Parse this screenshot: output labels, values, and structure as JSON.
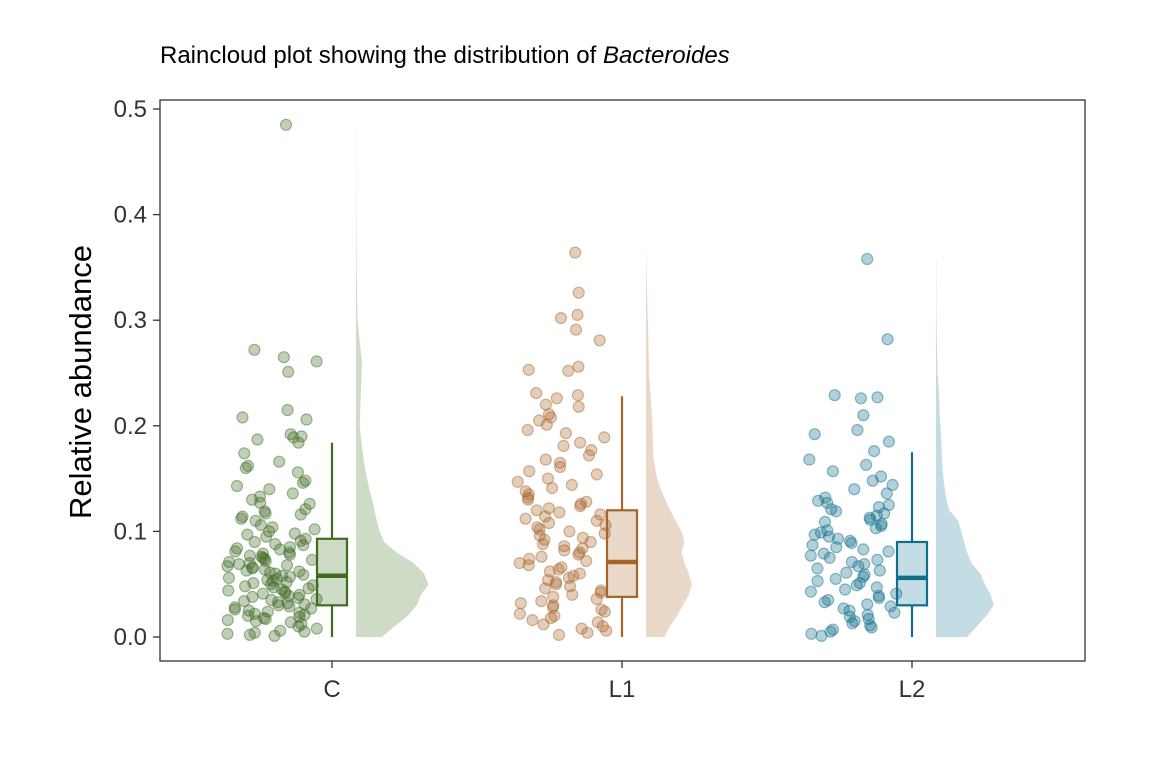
{
  "chart_data": {
    "type": "raincloud",
    "title_prefix": "Raincloud plot showing the distribution of ",
    "title_italic": "Bacteroides",
    "xlabel": "",
    "ylabel": "Relative abundance",
    "ylim": [
      -0.023,
      0.508
    ],
    "yticks": [
      0.0,
      0.1,
      0.2,
      0.3,
      0.4,
      0.5
    ],
    "ytick_labels": [
      "0.0",
      "0.1",
      "0.2",
      "0.3",
      "0.4",
      "0.5"
    ],
    "categories": [
      "C",
      "L1",
      "L2"
    ],
    "grid": false,
    "legend": "none",
    "series": [
      {
        "group": "C",
        "color": "#3F6B23",
        "fill": "#CEDBC7",
        "box": {
          "min": 0.0,
          "q1": 0.03,
          "median": 0.058,
          "q3": 0.093,
          "max": 0.184
        },
        "points": [
          0.485,
          0.272,
          0.265,
          0.261,
          0.251,
          0.215,
          0.208,
          0.206,
          0.192,
          0.19,
          0.189,
          0.187,
          0.184,
          0.174,
          0.166,
          0.162,
          0.16,
          0.156,
          0.148,
          0.146,
          0.143,
          0.14,
          0.136,
          0.133,
          0.13,
          0.127,
          0.126,
          0.121,
          0.119,
          0.117,
          0.116,
          0.114,
          0.112,
          0.11,
          0.106,
          0.104,
          0.102,
          0.1,
          0.098,
          0.097,
          0.095,
          0.093,
          0.091,
          0.09,
          0.088,
          0.087,
          0.085,
          0.084,
          0.083,
          0.081,
          0.08,
          0.079,
          0.078,
          0.077,
          0.076,
          0.075,
          0.074,
          0.073,
          0.072,
          0.071,
          0.07,
          0.069,
          0.068,
          0.067,
          0.066,
          0.065,
          0.064,
          0.063,
          0.062,
          0.061,
          0.06,
          0.059,
          0.058,
          0.057,
          0.056,
          0.055,
          0.054,
          0.053,
          0.052,
          0.051,
          0.05,
          0.049,
          0.048,
          0.047,
          0.046,
          0.045,
          0.044,
          0.043,
          0.042,
          0.041,
          0.04,
          0.039,
          0.038,
          0.037,
          0.036,
          0.035,
          0.034,
          0.033,
          0.032,
          0.031,
          0.03,
          0.029,
          0.028,
          0.027,
          0.026,
          0.025,
          0.024,
          0.023,
          0.022,
          0.021,
          0.02,
          0.019,
          0.018,
          0.017,
          0.016,
          0.015,
          0.014,
          0.012,
          0.01,
          0.008,
          0.006,
          0.005,
          0.004,
          0.003,
          0.002,
          0.001
        ],
        "density": [
          [
            0.0,
            0.35
          ],
          [
            0.01,
            0.52
          ],
          [
            0.02,
            0.7
          ],
          [
            0.03,
            0.82
          ],
          [
            0.04,
            0.88
          ],
          [
            0.05,
            0.98
          ],
          [
            0.06,
            0.92
          ],
          [
            0.07,
            0.78
          ],
          [
            0.08,
            0.55
          ],
          [
            0.09,
            0.38
          ],
          [
            0.1,
            0.32
          ],
          [
            0.11,
            0.28
          ],
          [
            0.12,
            0.25
          ],
          [
            0.13,
            0.22
          ],
          [
            0.14,
            0.18
          ],
          [
            0.16,
            0.12
          ],
          [
            0.18,
            0.08
          ],
          [
            0.2,
            0.05
          ],
          [
            0.22,
            0.06
          ],
          [
            0.24,
            0.07
          ],
          [
            0.26,
            0.08
          ],
          [
            0.28,
            0.05
          ],
          [
            0.3,
            0.02
          ],
          [
            0.34,
            0.01
          ],
          [
            0.4,
            0.004
          ],
          [
            0.45,
            0.003
          ],
          [
            0.485,
            0.003
          ]
        ]
      },
      {
        "group": "L1",
        "color": "#A8652A",
        "fill": "#EAD9C8",
        "box": {
          "min": 0.0,
          "q1": 0.038,
          "median": 0.071,
          "q3": 0.12,
          "max": 0.228
        },
        "points": [
          0.364,
          0.326,
          0.305,
          0.302,
          0.291,
          0.281,
          0.256,
          0.253,
          0.252,
          0.231,
          0.229,
          0.226,
          0.22,
          0.218,
          0.211,
          0.208,
          0.205,
          0.201,
          0.196,
          0.193,
          0.189,
          0.184,
          0.181,
          0.177,
          0.172,
          0.168,
          0.165,
          0.161,
          0.157,
          0.154,
          0.15,
          0.147,
          0.144,
          0.141,
          0.138,
          0.135,
          0.132,
          0.13,
          0.128,
          0.126,
          0.124,
          0.122,
          0.12,
          0.118,
          0.116,
          0.114,
          0.112,
          0.11,
          0.108,
          0.106,
          0.104,
          0.102,
          0.1,
          0.098,
          0.096,
          0.094,
          0.092,
          0.09,
          0.088,
          0.086,
          0.084,
          0.082,
          0.08,
          0.078,
          0.076,
          0.074,
          0.072,
          0.07,
          0.068,
          0.066,
          0.064,
          0.062,
          0.06,
          0.058,
          0.056,
          0.054,
          0.052,
          0.05,
          0.048,
          0.046,
          0.044,
          0.042,
          0.04,
          0.038,
          0.036,
          0.034,
          0.032,
          0.03,
          0.028,
          0.026,
          0.024,
          0.022,
          0.02,
          0.018,
          0.016,
          0.014,
          0.012,
          0.01,
          0.008,
          0.006,
          0.004,
          0.002
        ],
        "density": [
          [
            0.0,
            0.25
          ],
          [
            0.01,
            0.32
          ],
          [
            0.02,
            0.42
          ],
          [
            0.03,
            0.5
          ],
          [
            0.04,
            0.58
          ],
          [
            0.05,
            0.62
          ],
          [
            0.06,
            0.58
          ],
          [
            0.07,
            0.52
          ],
          [
            0.08,
            0.48
          ],
          [
            0.09,
            0.52
          ],
          [
            0.1,
            0.48
          ],
          [
            0.11,
            0.4
          ],
          [
            0.12,
            0.33
          ],
          [
            0.13,
            0.26
          ],
          [
            0.14,
            0.2
          ],
          [
            0.15,
            0.15
          ],
          [
            0.17,
            0.1
          ],
          [
            0.19,
            0.09
          ],
          [
            0.21,
            0.08
          ],
          [
            0.23,
            0.06
          ],
          [
            0.25,
            0.04
          ],
          [
            0.27,
            0.035
          ],
          [
            0.29,
            0.03
          ],
          [
            0.31,
            0.02
          ],
          [
            0.33,
            0.012
          ],
          [
            0.35,
            0.006
          ],
          [
            0.364,
            0.004
          ]
        ]
      },
      {
        "group": "L2",
        "color": "#0F6E8A",
        "fill": "#C4DDE5",
        "box": {
          "min": 0.0,
          "q1": 0.03,
          "median": 0.056,
          "q3": 0.09,
          "max": 0.175
        },
        "points": [
          0.358,
          0.282,
          0.229,
          0.227,
          0.226,
          0.21,
          0.196,
          0.192,
          0.185,
          0.176,
          0.168,
          0.163,
          0.157,
          0.152,
          0.148,
          0.144,
          0.14,
          0.136,
          0.132,
          0.129,
          0.127,
          0.125,
          0.123,
          0.121,
          0.119,
          0.117,
          0.115,
          0.113,
          0.111,
          0.109,
          0.107,
          0.105,
          0.103,
          0.101,
          0.099,
          0.097,
          0.095,
          0.093,
          0.091,
          0.089,
          0.087,
          0.085,
          0.083,
          0.081,
          0.079,
          0.077,
          0.075,
          0.073,
          0.071,
          0.069,
          0.067,
          0.065,
          0.063,
          0.061,
          0.059,
          0.057,
          0.055,
          0.053,
          0.051,
          0.049,
          0.047,
          0.045,
          0.043,
          0.041,
          0.039,
          0.037,
          0.035,
          0.033,
          0.031,
          0.029,
          0.027,
          0.025,
          0.023,
          0.021,
          0.019,
          0.017,
          0.015,
          0.013,
          0.011,
          0.009,
          0.007,
          0.005,
          0.003,
          0.001
        ],
        "density": [
          [
            0.0,
            0.42
          ],
          [
            0.01,
            0.55
          ],
          [
            0.02,
            0.68
          ],
          [
            0.03,
            0.78
          ],
          [
            0.04,
            0.74
          ],
          [
            0.05,
            0.66
          ],
          [
            0.06,
            0.6
          ],
          [
            0.07,
            0.48
          ],
          [
            0.08,
            0.42
          ],
          [
            0.09,
            0.38
          ],
          [
            0.1,
            0.34
          ],
          [
            0.11,
            0.3
          ],
          [
            0.12,
            0.18
          ],
          [
            0.13,
            0.14
          ],
          [
            0.15,
            0.1
          ],
          [
            0.17,
            0.08
          ],
          [
            0.19,
            0.07
          ],
          [
            0.21,
            0.05
          ],
          [
            0.23,
            0.04
          ],
          [
            0.25,
            0.02
          ],
          [
            0.27,
            0.015
          ],
          [
            0.29,
            0.01
          ],
          [
            0.31,
            0.006
          ],
          [
            0.34,
            0.004
          ],
          [
            0.358,
            0.003
          ]
        ]
      }
    ]
  }
}
